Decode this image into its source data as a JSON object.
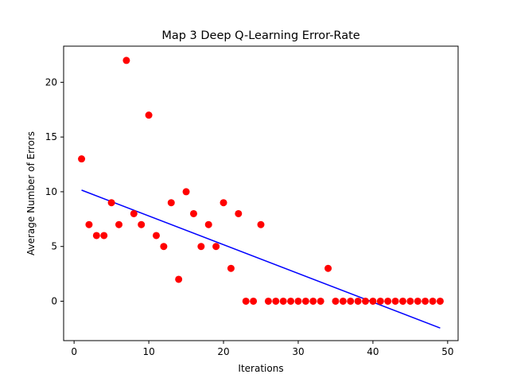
{
  "chart_data": {
    "type": "scatter",
    "title": "Map 3 Deep Q-Learning Error-Rate",
    "xlabel": "Iterations",
    "ylabel": "Average Number of Errors",
    "xlim": [
      -1.4,
      51.4
    ],
    "ylim": [
      -3.6,
      23.3
    ],
    "xticks": [
      0,
      10,
      20,
      30,
      40,
      50
    ],
    "yticks": [
      0,
      5,
      10,
      15,
      20
    ],
    "grid": false,
    "point_color": "#ff0000",
    "line_color": "#0000ff",
    "x": [
      1,
      2,
      3,
      4,
      5,
      6,
      7,
      8,
      9,
      10,
      11,
      12,
      13,
      14,
      15,
      16,
      17,
      18,
      19,
      20,
      21,
      22,
      23,
      24,
      25,
      26,
      27,
      28,
      29,
      30,
      31,
      32,
      33,
      34,
      35,
      36,
      37,
      38,
      39,
      40,
      41,
      42,
      43,
      44,
      45,
      46,
      47,
      48,
      49
    ],
    "y": [
      13,
      7,
      6,
      6,
      9,
      7,
      22,
      8,
      7,
      17,
      6,
      5,
      9,
      2,
      10,
      8,
      5,
      7,
      5,
      9,
      3,
      8,
      0,
      0,
      7,
      0,
      0,
      0,
      0,
      0,
      0,
      0,
      0,
      3,
      0,
      0,
      0,
      0,
      0,
      0,
      0,
      0,
      0,
      0,
      0,
      0,
      0,
      0,
      0
    ],
    "trend_line": {
      "x": [
        1,
        49
      ],
      "y": [
        10.15,
        -2.45
      ]
    }
  }
}
